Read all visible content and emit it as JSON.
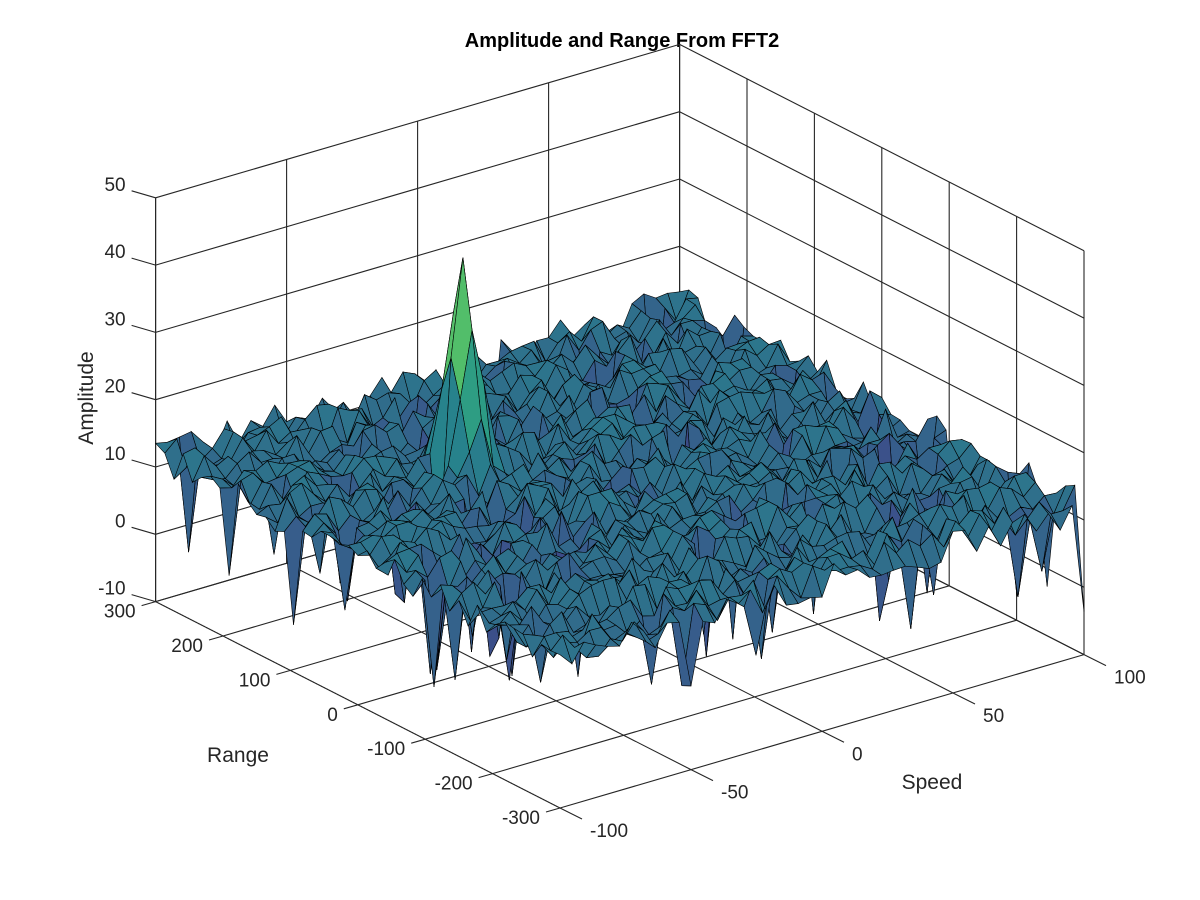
{
  "chart_data": {
    "type": "surface",
    "title": "Amplitude and Range From FFT2",
    "xlabel": "Speed",
    "ylabel": "Range",
    "zlabel": "Amplitude",
    "xlim": [
      -100,
      100
    ],
    "ylim": [
      -300,
      300
    ],
    "zlim": [
      -10,
      50
    ],
    "x_ticks": [
      "-100",
      "-50",
      "0",
      "50",
      "100"
    ],
    "y_ticks": [
      "-300",
      "-200",
      "-100",
      "0",
      "100",
      "200",
      "300"
    ],
    "z_ticks": [
      "-10",
      "0",
      "10",
      "20",
      "30",
      "40",
      "50"
    ],
    "grid": true,
    "colormap": "viridis",
    "noise_floor_db": 12,
    "noise_dip_min_db": -5,
    "peak": {
      "speed": -32,
      "range": 110,
      "amplitude": 43
    },
    "colors": {
      "surface_low": "#440154",
      "surface_mid": "#2a9d8f",
      "surface_high": "#8fd35a",
      "edge": "#000000"
    }
  }
}
